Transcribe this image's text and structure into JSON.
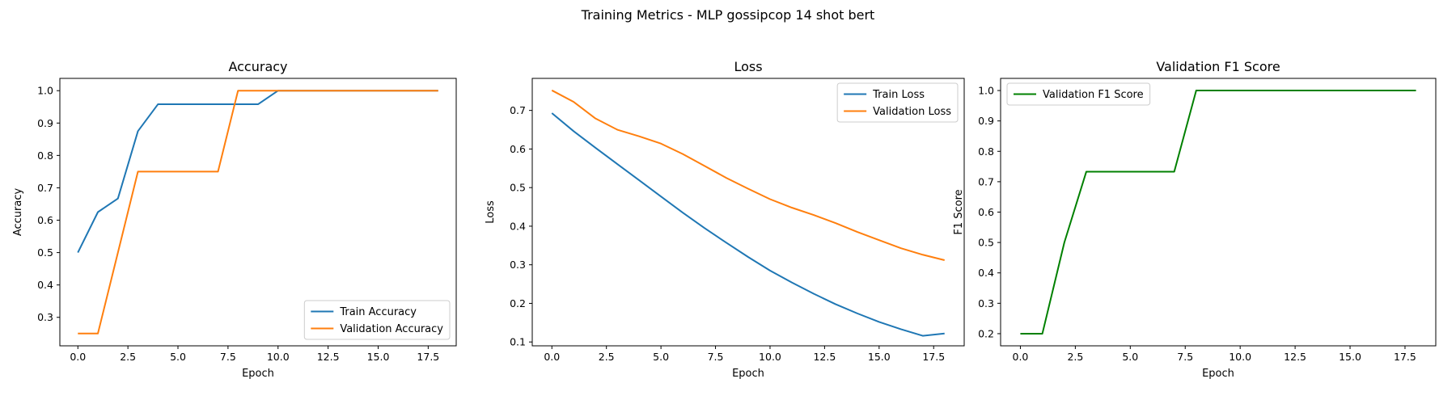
{
  "figure": {
    "title": "Training Metrics - MLP gossipcop 14 shot bert"
  },
  "colors": {
    "blue": "#1f77b4",
    "orange": "#ff7f0e",
    "green": "#008000"
  },
  "chart_data": [
    {
      "type": "line",
      "title": "Accuracy",
      "xlabel": "Epoch",
      "ylabel": "Accuracy",
      "xlim": [
        -0.9,
        18.9
      ],
      "ylim": [
        0.212,
        1.038
      ],
      "xticks": [
        0.0,
        2.5,
        5.0,
        7.5,
        10.0,
        12.5,
        15.0,
        17.5
      ],
      "xtick_labels": [
        "0.0",
        "2.5",
        "5.0",
        "7.5",
        "10.0",
        "12.5",
        "15.0",
        "17.5"
      ],
      "yticks": [
        0.3,
        0.4,
        0.5,
        0.6,
        0.7,
        0.8,
        0.9,
        1.0
      ],
      "ytick_labels": [
        "0.3",
        "0.4",
        "0.5",
        "0.6",
        "0.7",
        "0.8",
        "0.9",
        "1.0"
      ],
      "legend_loc": "bottom-right",
      "x": [
        0,
        1,
        2,
        3,
        4,
        5,
        6,
        7,
        8,
        9,
        10,
        11,
        12,
        13,
        14,
        15,
        16,
        17,
        18
      ],
      "series": [
        {
          "name": "Train Accuracy",
          "color": "#1f77b4",
          "values": [
            0.5,
            0.625,
            0.667,
            0.875,
            0.958,
            0.958,
            0.958,
            0.958,
            0.958,
            0.958,
            1.0,
            1.0,
            1.0,
            1.0,
            1.0,
            1.0,
            1.0,
            1.0,
            1.0
          ]
        },
        {
          "name": "Validation Accuracy",
          "color": "#ff7f0e",
          "values": [
            0.25,
            0.25,
            0.5,
            0.75,
            0.75,
            0.75,
            0.75,
            0.75,
            1.0,
            1.0,
            1.0,
            1.0,
            1.0,
            1.0,
            1.0,
            1.0,
            1.0,
            1.0,
            1.0
          ]
        }
      ]
    },
    {
      "type": "line",
      "title": "Loss",
      "xlabel": "Epoch",
      "ylabel": "Loss",
      "xlim": [
        -0.9,
        18.9
      ],
      "ylim": [
        0.09,
        0.783
      ],
      "xticks": [
        0.0,
        2.5,
        5.0,
        7.5,
        10.0,
        12.5,
        15.0,
        17.5
      ],
      "xtick_labels": [
        "0.0",
        "2.5",
        "5.0",
        "7.5",
        "10.0",
        "12.5",
        "15.0",
        "17.5"
      ],
      "yticks": [
        0.1,
        0.2,
        0.3,
        0.4,
        0.5,
        0.6,
        0.7
      ],
      "ytick_labels": [
        "0.1",
        "0.2",
        "0.3",
        "0.4",
        "0.5",
        "0.6",
        "0.7"
      ],
      "legend_loc": "top-right",
      "x": [
        0,
        1,
        2,
        3,
        4,
        5,
        6,
        7,
        8,
        9,
        10,
        11,
        12,
        13,
        14,
        15,
        16,
        17,
        18
      ],
      "series": [
        {
          "name": "Train Loss",
          "color": "#1f77b4",
          "values": [
            0.693,
            0.646,
            0.603,
            0.561,
            0.519,
            0.477,
            0.435,
            0.395,
            0.357,
            0.32,
            0.285,
            0.254,
            0.225,
            0.198,
            0.174,
            0.152,
            0.133,
            0.116,
            0.122
          ]
        },
        {
          "name": "Validation Loss",
          "color": "#ff7f0e",
          "values": [
            0.752,
            0.722,
            0.679,
            0.65,
            0.633,
            0.614,
            0.587,
            0.556,
            0.525,
            0.497,
            0.47,
            0.448,
            0.429,
            0.408,
            0.385,
            0.364,
            0.343,
            0.326,
            0.312
          ]
        }
      ]
    },
    {
      "type": "line",
      "title": "Validation F1 Score",
      "xlabel": "Epoch",
      "ylabel": "F1 Score",
      "xlim": [
        -0.9,
        18.9
      ],
      "ylim": [
        0.16,
        1.04
      ],
      "xticks": [
        0.0,
        2.5,
        5.0,
        7.5,
        10.0,
        12.5,
        15.0,
        17.5
      ],
      "xtick_labels": [
        "0.0",
        "2.5",
        "5.0",
        "7.5",
        "10.0",
        "12.5",
        "15.0",
        "17.5"
      ],
      "yticks": [
        0.2,
        0.3,
        0.4,
        0.5,
        0.6,
        0.7,
        0.8,
        0.9,
        1.0
      ],
      "ytick_labels": [
        "0.2",
        "0.3",
        "0.4",
        "0.5",
        "0.6",
        "0.7",
        "0.8",
        "0.9",
        "1.0"
      ],
      "legend_loc": "top-left",
      "x": [
        0,
        1,
        2,
        3,
        4,
        5,
        6,
        7,
        8,
        9,
        10,
        11,
        12,
        13,
        14,
        15,
        16,
        17,
        18
      ],
      "series": [
        {
          "name": "Validation F1 Score",
          "color": "#008000",
          "values": [
            0.2,
            0.2,
            0.5,
            0.733,
            0.733,
            0.733,
            0.733,
            0.733,
            1.0,
            1.0,
            1.0,
            1.0,
            1.0,
            1.0,
            1.0,
            1.0,
            1.0,
            1.0,
            1.0
          ]
        }
      ]
    }
  ]
}
